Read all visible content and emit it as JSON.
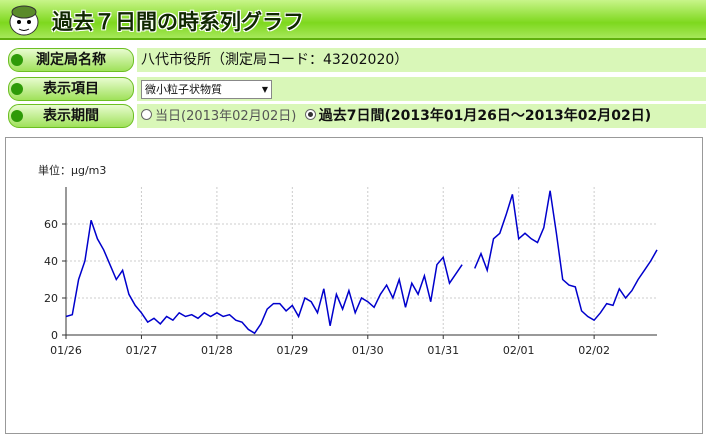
{
  "header": {
    "title": "過去７日間の時系列グラフ"
  },
  "form": {
    "rows": [
      {
        "label": "測定局名称",
        "value": "八代市役所（測定局コード：43202020）"
      },
      {
        "label": "表示項目",
        "value": "微小粒子状物質"
      },
      {
        "label": "表示期間",
        "options": [
          "当日(2013年02月02日)",
          "過去7日間(2013年01月26日～2013年02月02日)"
        ],
        "selected_option": 1
      }
    ]
  },
  "chart_data": {
    "type": "line",
    "y_label": "単位：μg/m3",
    "color": "#0000cc",
    "grid": true,
    "ylim": [
      0,
      80
    ],
    "yticks": [
      0,
      20,
      40,
      60
    ],
    "categories": [
      "01/26",
      null,
      null,
      null,
      null,
      null,
      null,
      null,
      null,
      null,
      null,
      null,
      "01/27",
      null,
      null,
      null,
      null,
      null,
      null,
      null,
      null,
      null,
      null,
      null,
      "01/28",
      null,
      null,
      null,
      null,
      null,
      null,
      null,
      null,
      null,
      null,
      null,
      "01/29",
      null,
      null,
      null,
      null,
      null,
      null,
      null,
      null,
      null,
      null,
      null,
      "01/30",
      null,
      null,
      null,
      null,
      null,
      null,
      null,
      null,
      null,
      null,
      null,
      "01/31",
      null,
      null,
      null,
      null,
      null,
      null,
      null,
      null,
      null,
      null,
      null,
      "02/01",
      null,
      null,
      null,
      null,
      null,
      null,
      null,
      null,
      null,
      null,
      null,
      "02/02",
      null,
      null,
      null,
      null,
      null,
      null,
      null,
      null,
      null,
      null
    ],
    "values": [
      10,
      11,
      30,
      40,
      62,
      52,
      46,
      38,
      30,
      35,
      22,
      16,
      12,
      7,
      9,
      6,
      10,
      8,
      12,
      10,
      11,
      9,
      12,
      10,
      12,
      10,
      11,
      8,
      7,
      3,
      1,
      6,
      14,
      17,
      17,
      13,
      16,
      10,
      20,
      18,
      12,
      25,
      5,
      22,
      14,
      24,
      12,
      20,
      18,
      15,
      22,
      27,
      20,
      30,
      15,
      28,
      22,
      32,
      18,
      38,
      42,
      28,
      33,
      38,
      null,
      36,
      44,
      35,
      52,
      55,
      65,
      76,
      52,
      55,
      52,
      50,
      58,
      78,
      55,
      30,
      27,
      26,
      13,
      10,
      8,
      12,
      17,
      16,
      25,
      20,
      24,
      30,
      35,
      40,
      46
    ]
  }
}
